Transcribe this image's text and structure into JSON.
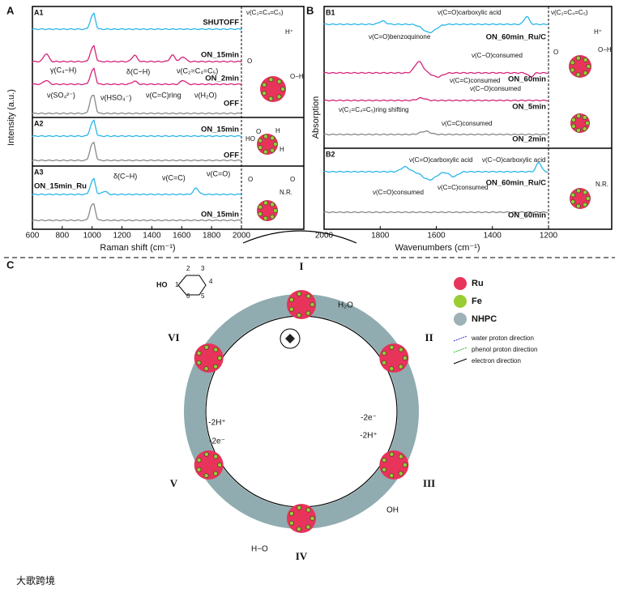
{
  "panel_a": {
    "label": "A",
    "y_axis_label": "Intensity (a.u.)",
    "x_axis_label": "Raman shift (cm⁻¹)",
    "x_ticks": [
      "600",
      "800",
      "1000",
      "1200",
      "1400",
      "1600",
      "1800",
      "2000"
    ],
    "a1": {
      "label": "A1",
      "traces": [
        "SHUTOFF",
        "ON_15min",
        "ON_2min",
        "OFF"
      ],
      "annotations": [
        "γ(C₄−H)",
        "δ(C−H)",
        "ν(C₂=C₄=C₅)",
        "ν(SO₄²⁻)",
        "ν(HSO₄⁻)",
        "ν(C=C)ring",
        "ν(H₂O)"
      ],
      "inset": [
        "ν(C₂=C₄=C₅)",
        "H⁺",
        "O",
        "O−H"
      ]
    },
    "a2": {
      "label": "A2",
      "traces": [
        "ON_15min",
        "OFF"
      ],
      "inset": [
        "HO",
        "H",
        "O",
        "H"
      ]
    },
    "a3": {
      "label": "A3",
      "traces": [
        "ON_15min_Ru",
        "ON_15min"
      ],
      "annotations": [
        "δ(C−H)",
        "ν(C=C)",
        "ν(C=O)"
      ],
      "inset": [
        "O",
        "O",
        "N.R."
      ]
    }
  },
  "panel_b": {
    "label": "B",
    "y_axis_label": "Absorption",
    "x_axis_label": "Wavenumbers (cm⁻¹)",
    "x_ticks": [
      "2000",
      "1800",
      "1600",
      "1400",
      "1200"
    ],
    "b1": {
      "label": "B1",
      "traces": [
        "ON_60min_Ru/C",
        "ON_60min",
        "ON_5min",
        "ON_2min"
      ],
      "annotations": [
        "ν(C=O)carboxylic acid",
        "ν(C=O)benzoquinone",
        "ν(C=C)consumed",
        "ν(C−O)consumed",
        "ν(C−O)consumed",
        "ν(C₂=C₄=C₅)ring shifting",
        "ν(C=C)consumed"
      ],
      "inset": [
        "ν(C₂=C₄=C₅)",
        "H⁺",
        "O",
        "O−H"
      ]
    },
    "b2": {
      "label": "B2",
      "traces": [
        "ON_60min_Ru/C",
        "ON_60min"
      ],
      "annotations": [
        "ν(C=O)carboxylic acid",
        "ν(C−O)carboxylic acid",
        "ν(C=O)consumed",
        "ν(C=C)consumed"
      ],
      "inset": [
        "N.R."
      ]
    }
  },
  "panel_c": {
    "label": "C",
    "states": [
      "I",
      "II",
      "III",
      "IV",
      "V",
      "VI"
    ],
    "legend": [
      "Ru",
      "Fe",
      "NHPC",
      "water proton direction",
      "phenol proton direction",
      "electron direction"
    ],
    "steps": [
      "-2H⁺",
      "-2e⁻",
      "-2e⁻",
      "-2H⁺"
    ],
    "phenol": {
      "group": "HO",
      "atoms": [
        "1",
        "2",
        "3",
        "4",
        "5",
        "6"
      ]
    },
    "labels": [
      "H₂O",
      "OH",
      "H−O"
    ]
  },
  "watermark": "大歌跨境"
}
